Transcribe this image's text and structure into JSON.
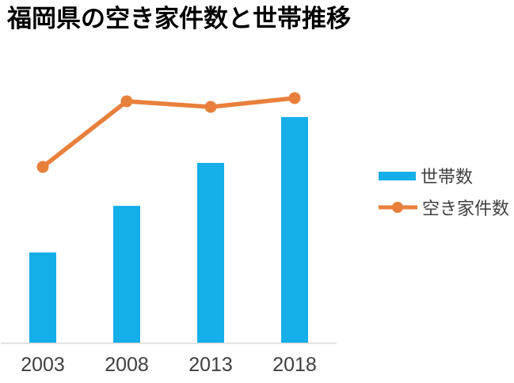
{
  "title": "福岡県の空き家件数と世帯推移",
  "legend": {
    "position": "right",
    "items": [
      {
        "label": "世帯数",
        "swatch": "bar-rectangle",
        "color": "#14aee9"
      },
      {
        "label": "空き家件数",
        "swatch": "line-with-circle-marker",
        "color": "#e8803c"
      }
    ]
  },
  "colors": {
    "bar": "#14aee9",
    "line": "#e8803c",
    "axis_line": "#d9d9d9",
    "axis_label": "#3f3f3f",
    "title": "#000000",
    "background": "#ffffff"
  },
  "chart_data": {
    "type": "combo",
    "title": "福岡県の空き家件数と世帯推移",
    "categories": [
      "2003",
      "2008",
      "2013",
      "2018"
    ],
    "series": [
      {
        "name": "世帯数",
        "chart_type": "bar",
        "color": "#14aee9",
        "values_pct_of_plot_height": [
          33.8,
          51.3,
          67.4,
          84.6
        ]
      },
      {
        "name": "空き家件数",
        "chart_type": "line",
        "color": "#e8803c",
        "marker": "circle",
        "values_pct_of_plot_height": [
          65.9,
          90.5,
          88.4,
          91.7
        ]
      }
    ],
    "value_axis": {
      "visible": false,
      "unit": "relative (no numeric labels shown in image)"
    },
    "x_axis": {
      "labels": [
        "2003",
        "2008",
        "2013",
        "2018"
      ],
      "line_visible": true
    },
    "grid": false,
    "legend_position": "right"
  }
}
